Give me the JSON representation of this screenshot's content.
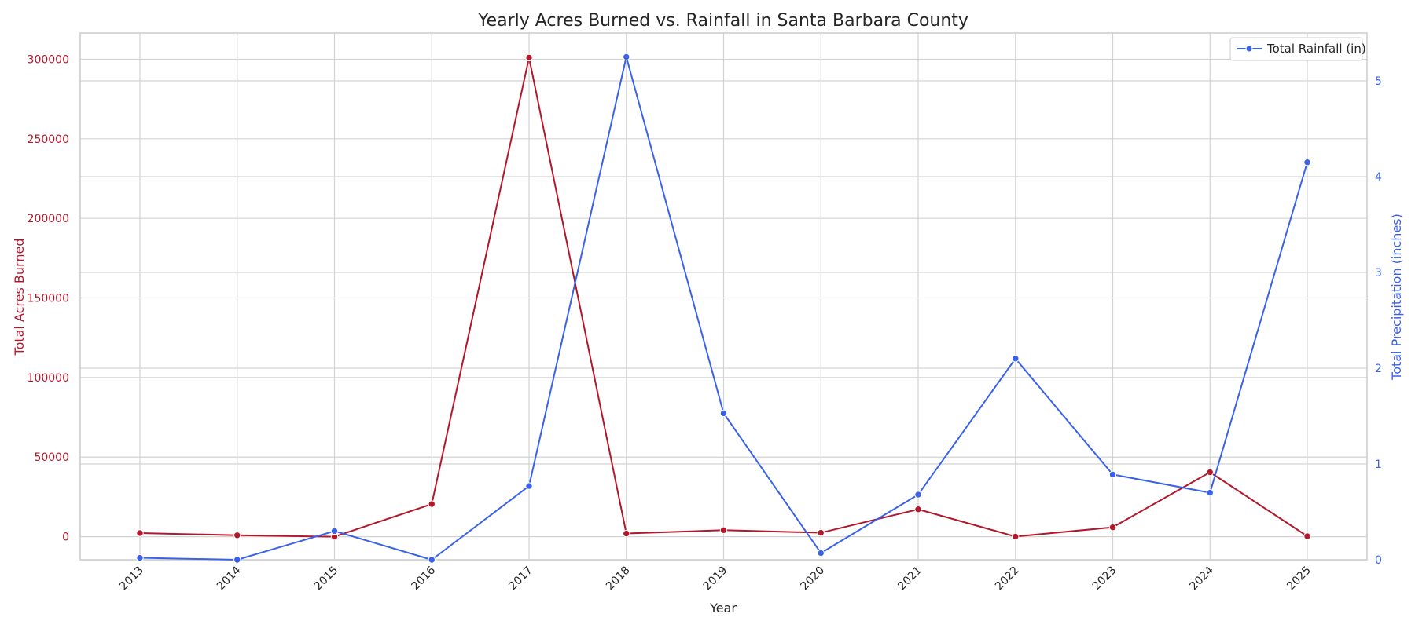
{
  "chart_data": {
    "type": "line",
    "title": "Yearly Acres Burned vs. Rainfall in Santa Barbara County",
    "xlabel": "Year",
    "ylabel_left": "Total Acres Burned",
    "ylabel_right": "Total Precipitation (inches)",
    "x": [
      "2013",
      "2014",
      "2015",
      "2016",
      "2017",
      "2018",
      "2019",
      "2020",
      "2021",
      "2022",
      "2023",
      "2024",
      "2025"
    ],
    "ylim_left": [
      -14500,
      316500
    ],
    "ylim_right": [
      0,
      5.5
    ],
    "yticks_left": [
      "0",
      "50000",
      "100000",
      "150000",
      "200000",
      "250000",
      "300000"
    ],
    "yticks_right": [
      "0",
      "1",
      "2",
      "3",
      "4",
      "5"
    ],
    "grid": true,
    "legend": {
      "position": "top-right",
      "entries": [
        "Total Rainfall (in)"
      ]
    },
    "series": [
      {
        "name": "",
        "axis": "left",
        "color": "#b2182b",
        "values": [
          2300,
          900,
          0,
          20500,
          301000,
          2000,
          4100,
          2500,
          17200,
          100,
          5900,
          40500,
          300
        ]
      },
      {
        "name": "Total Rainfall (in)",
        "axis": "right",
        "color": "#3a62e8",
        "values": [
          0.02,
          0.0,
          0.3,
          0.0,
          0.77,
          5.25,
          1.53,
          0.07,
          0.68,
          2.1,
          0.89,
          0.7,
          4.15
        ]
      }
    ]
  }
}
